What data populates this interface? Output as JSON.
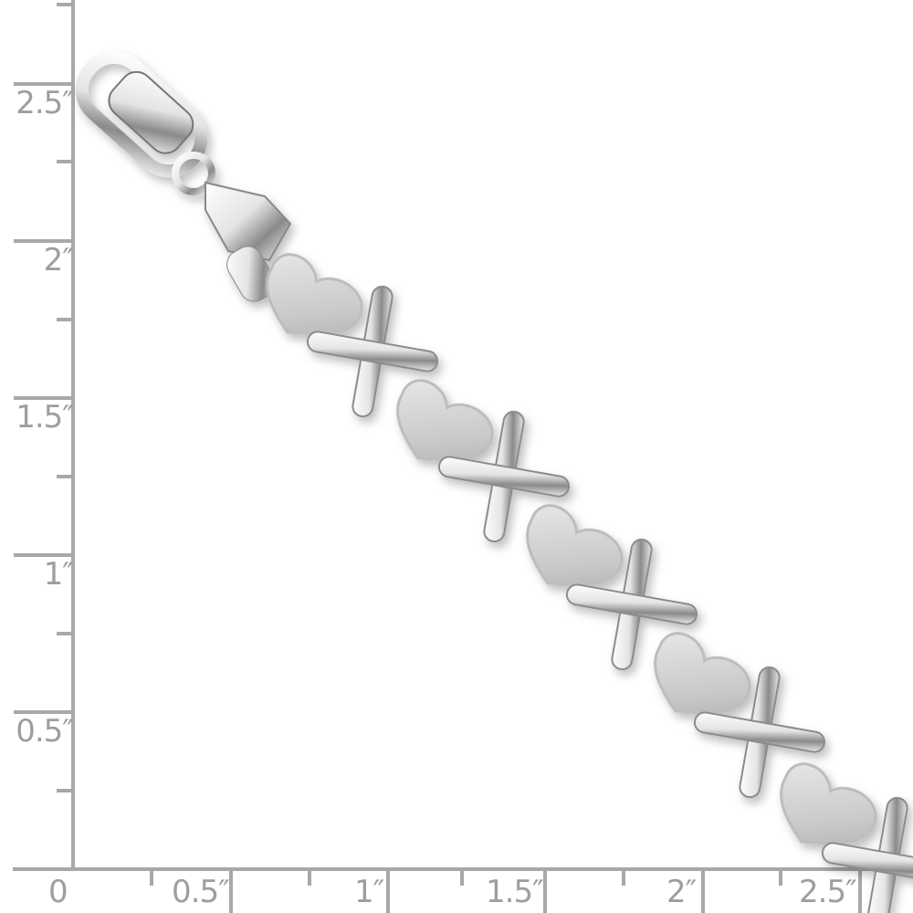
{
  "ruler": {
    "unit": "inch",
    "color": "#a8a8a8",
    "vertical_labels": [
      "2.5″",
      "2″",
      "1.5″",
      "1″",
      "0.5″"
    ],
    "horizontal_labels": [
      "0",
      "0.5″",
      "1″",
      "1.5″",
      "2″",
      "2.5″"
    ]
  },
  "product": {
    "subject": "silver bracelet with alternating hearts and X links and a lobster clasp",
    "metal_color": "#e6e6e6",
    "texture_color": "#cfcfcf"
  }
}
